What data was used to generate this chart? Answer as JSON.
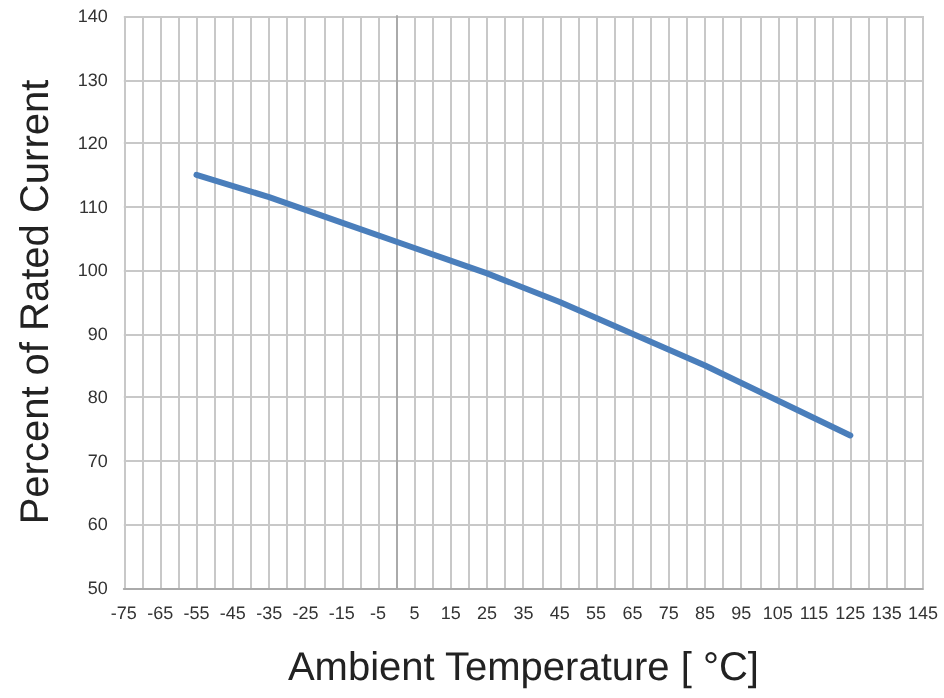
{
  "chart_data": {
    "type": "line",
    "xlabel": "Ambient Temperature [ °C]",
    "ylabel": "Percent of Rated Current",
    "x": [
      -55,
      -35,
      -15,
      5,
      25,
      45,
      65,
      85,
      105,
      125
    ],
    "series": [
      {
        "color": "#4a7ebb",
        "values": [
          115,
          111.5,
          107.5,
          103.5,
          99.5,
          95,
          90,
          85,
          79.5,
          74
        ]
      }
    ],
    "xlim": [
      -75,
      145
    ],
    "xticks": [
      -75,
      {
        "value": -70,
        "label": null
      },
      -65,
      {
        "value": -60,
        "label": null
      },
      -55,
      {
        "value": -50,
        "label": null
      },
      -45,
      {
        "value": -40,
        "label": null
      },
      -35,
      {
        "value": -30,
        "label": null
      },
      -25,
      {
        "value": -20,
        "label": null
      },
      -15,
      {
        "value": -10,
        "label": null
      },
      -5,
      {
        "value": 0,
        "label": null
      },
      5,
      {
        "value": 10,
        "label": null
      },
      15,
      {
        "value": 20,
        "label": null
      },
      25,
      {
        "value": 30,
        "label": null
      },
      35,
      {
        "value": 40,
        "label": null
      },
      45,
      {
        "value": 50,
        "label": null
      },
      55,
      {
        "value": 60,
        "label": null
      },
      65,
      {
        "value": 70,
        "label": null
      },
      75,
      {
        "value": 80,
        "label": null
      },
      85,
      {
        "value": 90,
        "label": null
      },
      95,
      {
        "value": 100,
        "label": null
      },
      105,
      {
        "value": 110,
        "label": null
      },
      115,
      {
        "value": 120,
        "label": null
      },
      125,
      {
        "value": 130,
        "label": null
      },
      135,
      {
        "value": 140,
        "label": null
      },
      145
    ],
    "ylim": [
      50,
      140
    ],
    "yticks": [
      50,
      60,
      70,
      80,
      90,
      100,
      110,
      120,
      130,
      140
    ],
    "grid": true,
    "marker": "none",
    "line_style": "solid"
  }
}
